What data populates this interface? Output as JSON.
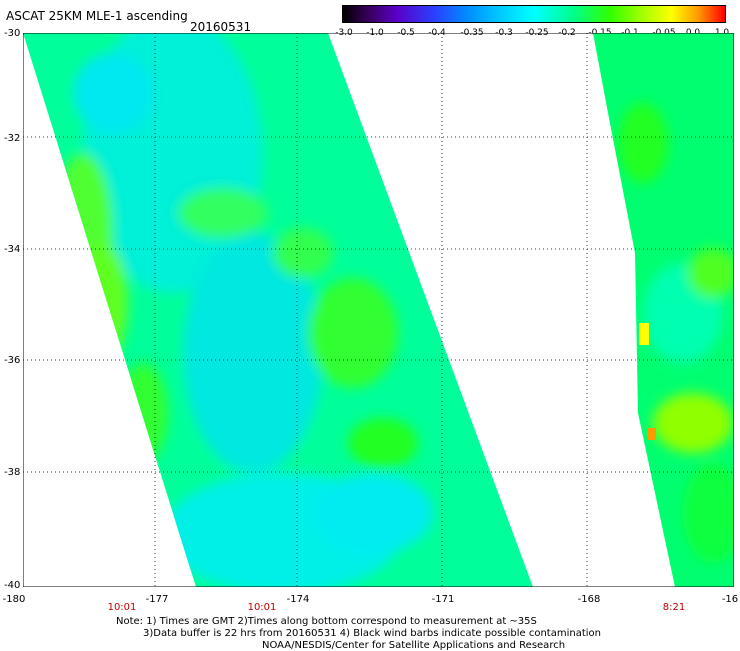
{
  "header": {
    "title": "ASCAT 25KM MLE-1 ascending",
    "date": "20160531"
  },
  "colorbar": {
    "ticks": [
      "-3.0",
      "-1.0",
      "-0.5",
      "-0.4",
      "-0.35",
      "-0.3",
      "-0.25",
      "-0.2",
      "-0.15",
      "-0.1",
      "-0.05",
      "0.0",
      "1.0"
    ],
    "colors": [
      "#000000",
      "#5a00c8",
      "#2a40ff",
      "#00d0ff",
      "#00ffff",
      "#30ff00",
      "#ffff00",
      "#ff9900",
      "#ff0000"
    ]
  },
  "axes": {
    "y_labels": [
      "-30",
      "-32",
      "-34",
      "-36",
      "-38",
      "-40"
    ],
    "x_labels": [
      "-180",
      "-177",
      "-174",
      "-171",
      "-168",
      "-16"
    ],
    "time_labels": [
      "10:01",
      "10:01",
      "8:21"
    ]
  },
  "swaths": [
    {
      "name": "swath-left",
      "time": "10:01"
    },
    {
      "name": "swath-right",
      "time": "8:21"
    }
  ],
  "notes": {
    "line1": "Note: 1) Times are GMT 2)Times along bottom correspond to measurement at ~35S",
    "line2": "3)Data buffer is 22 hrs from 20160531 4) Black wind barbs indicate possible contamination",
    "line3": "NOAA/NESDIS/Center for Satellite Applications and Research"
  }
}
